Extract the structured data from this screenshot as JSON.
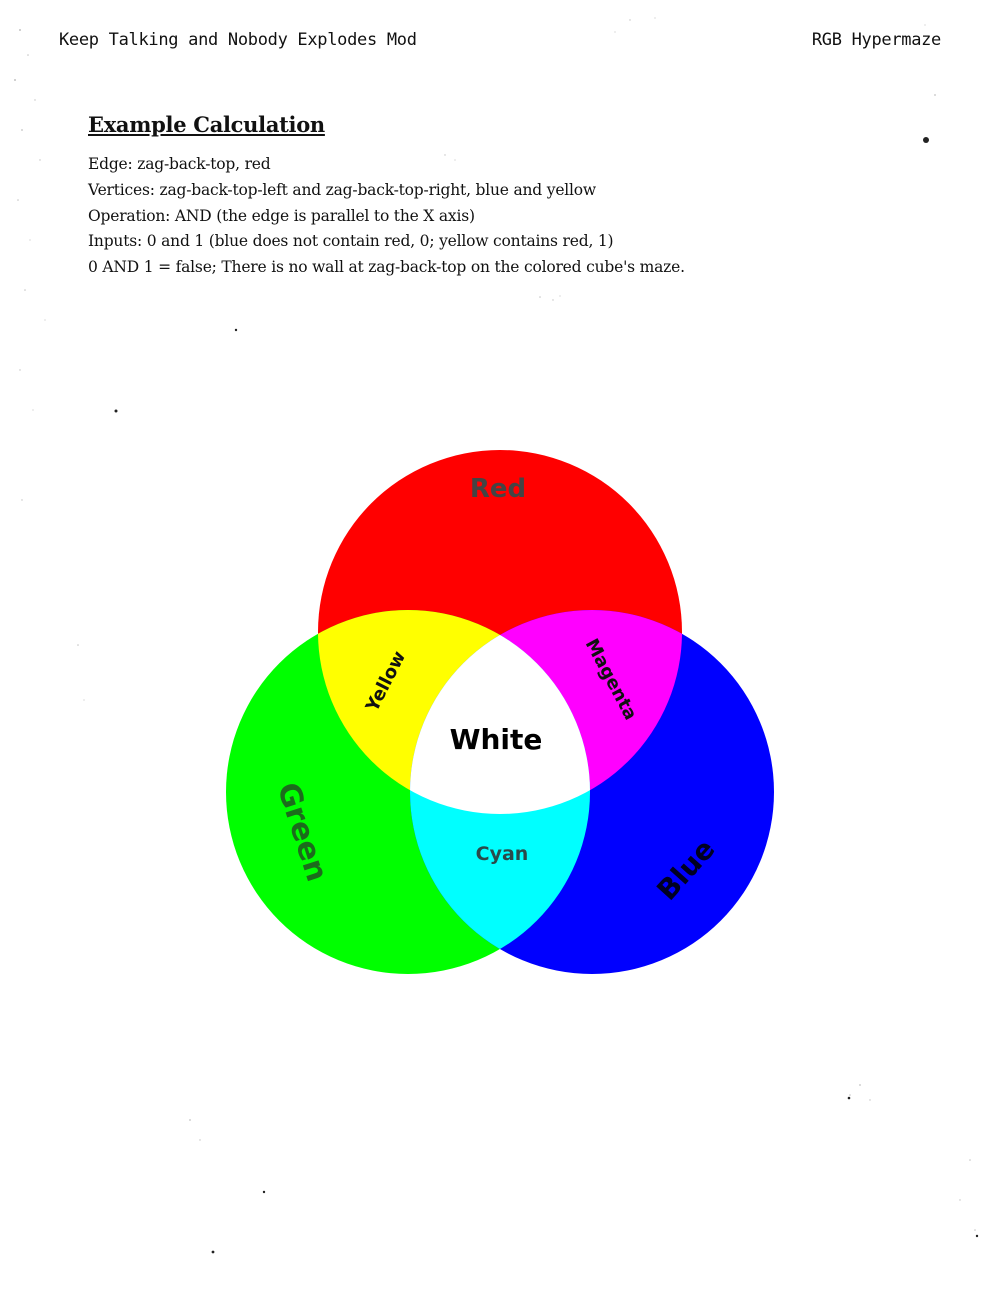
{
  "header": {
    "left": "Keep Talking and Nobody Explodes Mod",
    "right": "RGB Hypermaze"
  },
  "section": {
    "title": "Example Calculation",
    "lines": [
      "Edge: zag-back-top, red",
      "Vertices: zag-back-top-left and zag-back-top-right, blue and yellow",
      "Operation: AND (the edge is parallel to the X axis)",
      "Inputs: 0 and 1 (blue does not contain red, 0; yellow contains red, 1)",
      "0 AND 1 = false; There is no wall at zag-back-top on the colored cube's maze."
    ]
  },
  "venn": {
    "labels": {
      "red": "Red",
      "green": "Green",
      "blue": "Blue",
      "yellow": "Yellow",
      "magenta": "Magenta",
      "cyan": "Cyan",
      "white": "White"
    },
    "colors": {
      "red": "#ff0000",
      "green": "#00ff00",
      "blue": "#0000ff",
      "yellow": "#ffff00",
      "magenta": "#ff00ff",
      "cyan": "#00ffff",
      "white": "#ffffff"
    }
  }
}
